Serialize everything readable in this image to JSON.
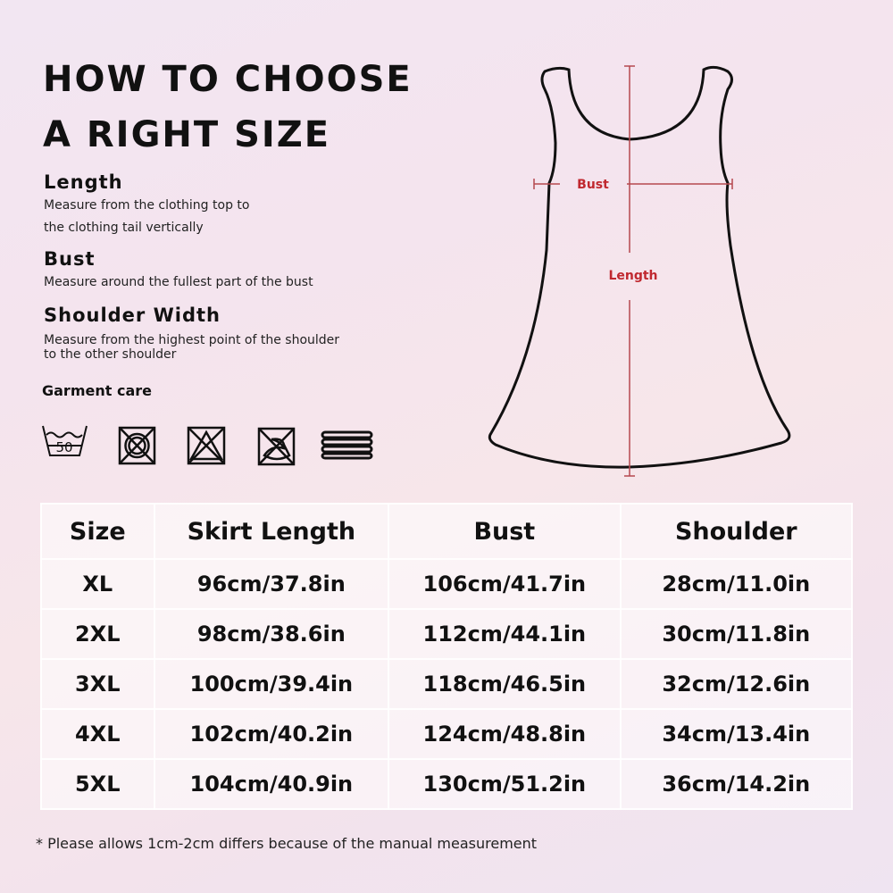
{
  "title": {
    "line1": "HOW TO CHOOSE",
    "line2": "A RIGHT SIZE"
  },
  "sections": [
    {
      "heading": "Length",
      "text1": "Measure from the clothing top to",
      "text2": "the clothing tail vertically"
    },
    {
      "heading": "Bust",
      "text1": "Measure around the fullest part of the bust"
    },
    {
      "heading": "Shoulder Width",
      "text1": "Measure from the highest point of the shoulder",
      "text2": "to the other shoulder"
    }
  ],
  "care": {
    "label": "Garment care",
    "wash_temp": "50",
    "icons": [
      "wash-50-icon",
      "do-not-tumble-dry-icon",
      "do-not-bleach-icon",
      "do-not-iron-icon",
      "dry-flat-icon"
    ]
  },
  "diagram": {
    "bust_label": "Bust",
    "length_label": "Length",
    "accent": "#c0282f"
  },
  "table": {
    "headers": [
      "Size",
      "Skirt Length",
      "Bust",
      "Shoulder"
    ],
    "rows": [
      [
        "XL",
        "96cm/37.8in",
        "106cm/41.7in",
        "28cm/11.0in"
      ],
      [
        "2XL",
        "98cm/38.6in",
        "112cm/44.1in",
        "30cm/11.8in"
      ],
      [
        "3XL",
        "100cm/39.4in",
        "118cm/46.5in",
        "32cm/12.6in"
      ],
      [
        "4XL",
        "102cm/40.2in",
        "124cm/48.8in",
        "34cm/13.4in"
      ],
      [
        "5XL",
        "104cm/40.9in",
        "130cm/51.2in",
        "36cm/14.2in"
      ]
    ]
  },
  "note": "* Please allows 1cm-2cm differs because of the manual measurement"
}
